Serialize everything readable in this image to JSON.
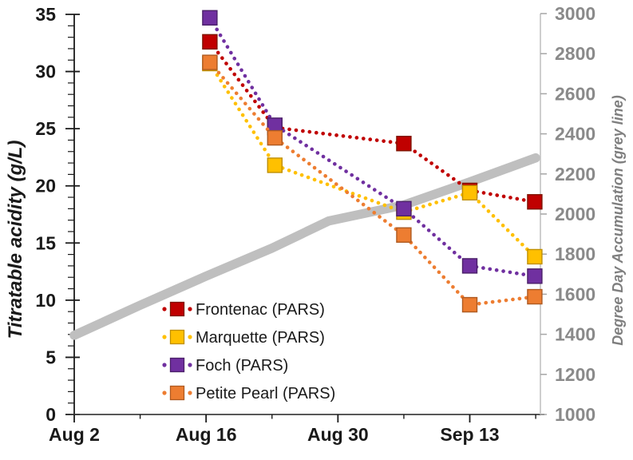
{
  "chart_data": {
    "type": "line",
    "title": "",
    "x_axis": {
      "kind": "date",
      "domain_days": [
        0,
        49.5
      ],
      "major_ticks": [
        {
          "day": 0,
          "label": "Aug 2"
        },
        {
          "day": 14,
          "label": "Aug 16"
        },
        {
          "day": 28,
          "label": "Aug 30"
        },
        {
          "day": 42,
          "label": "Sep 13"
        }
      ],
      "minor_tick_days": [
        7,
        21,
        35,
        49
      ]
    },
    "left_axis": {
      "title": "Titratable acidity (g/L)",
      "min": 0,
      "max": 35,
      "major_step": 5,
      "minor_step": 1,
      "tick_labels": [
        "0",
        "5",
        "10",
        "15",
        "20",
        "25",
        "30",
        "35"
      ]
    },
    "right_axis": {
      "title": "Degree Day Accumulation (grey line)",
      "min": 1000,
      "max": 3000,
      "major_step": 200,
      "tick_labels": [
        "1000",
        "1200",
        "1400",
        "1600",
        "1800",
        "2000",
        "2200",
        "2400",
        "2600",
        "2800",
        "3000"
      ]
    },
    "series": [
      {
        "name": "Degree Day Accumulation (grey line)",
        "axis": "right",
        "style": "solid-thick",
        "in_legend": false,
        "color": "#bfbfbf",
        "marker_border": "#bfbfbf",
        "points": [
          {
            "day": 0,
            "value": 1395
          },
          {
            "day": 7,
            "value": 1545
          },
          {
            "day": 14,
            "value": 1690
          },
          {
            "day": 21,
            "value": 1830
          },
          {
            "day": 27,
            "value": 1965
          },
          {
            "day": 35,
            "value": 2045
          },
          {
            "day": 42,
            "value": 2160
          },
          {
            "day": 49,
            "value": 2280
          }
        ]
      },
      {
        "name": "Frontenac (PARS)",
        "axis": "left",
        "style": "dotted-square",
        "in_legend": true,
        "color": "#c00000",
        "marker_border": "#7f1300",
        "points": [
          {
            "date": "Aug 16",
            "day": 14.4,
            "value": 32.6
          },
          {
            "date": "Aug 23",
            "day": 21.3,
            "value": 25.1
          },
          {
            "date": "Sep 6",
            "day": 35.0,
            "value": 23.7
          },
          {
            "date": "Sep 13",
            "day": 42.0,
            "value": 19.6
          },
          {
            "date": "Sep 20",
            "day": 48.9,
            "value": 18.6
          }
        ]
      },
      {
        "name": "Marquette (PARS)",
        "axis": "left",
        "style": "dotted-square",
        "in_legend": true,
        "color": "#ffc000",
        "marker_border": "#bf8f00",
        "points": [
          {
            "date": "Aug 16",
            "day": 14.4,
            "value": 30.7
          },
          {
            "date": "Aug 23",
            "day": 21.3,
            "value": 21.8
          },
          {
            "date": "Sep 6",
            "day": 35.0,
            "value": 17.7
          },
          {
            "date": "Sep 13",
            "day": 42.0,
            "value": 19.4
          },
          {
            "date": "Sep 20",
            "day": 48.9,
            "value": 13.8
          }
        ]
      },
      {
        "name": "Foch (PARS)",
        "axis": "left",
        "style": "dotted-square",
        "in_legend": true,
        "color": "#7030a0",
        "marker_border": "#4b2069",
        "points": [
          {
            "date": "Aug 16",
            "day": 14.4,
            "value": 34.7
          },
          {
            "date": "Aug 23",
            "day": 21.3,
            "value": 25.3
          },
          {
            "date": "Sep 6",
            "day": 35.0,
            "value": 18.0
          },
          {
            "date": "Sep 13",
            "day": 42.0,
            "value": 13.0
          },
          {
            "date": "Sep 20",
            "day": 48.9,
            "value": 12.1
          }
        ]
      },
      {
        "name": "Petite Pearl (PARS)",
        "axis": "left",
        "style": "dotted-square",
        "in_legend": true,
        "color": "#ed7d31",
        "marker_border": "#ae5a21",
        "points": [
          {
            "date": "Aug 16",
            "day": 14.4,
            "value": 30.8
          },
          {
            "date": "Aug 23",
            "day": 21.3,
            "value": 24.2
          },
          {
            "date": "Sep 6",
            "day": 35.0,
            "value": 15.7
          },
          {
            "date": "Sep 13",
            "day": 42.0,
            "value": 9.6
          },
          {
            "date": "Sep 20",
            "day": 48.9,
            "value": 10.3
          }
        ]
      }
    ],
    "legend": {
      "position": "inside-bottom-left",
      "entries": [
        "Frontenac (PARS)",
        "Marquette (PARS)",
        "Foch (PARS)",
        "Petite Pearl (PARS)"
      ]
    }
  }
}
